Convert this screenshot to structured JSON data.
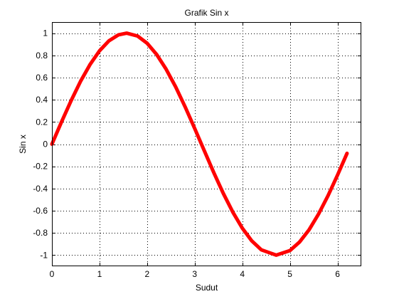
{
  "chart_data": {
    "type": "line",
    "title": "Grafik Sin x",
    "xlabel": "Sudut",
    "ylabel": "Sin x",
    "xlim": [
      0,
      6.5
    ],
    "ylim": [
      -1.1,
      1.1
    ],
    "xticks": [
      0,
      1,
      2,
      3,
      4,
      5,
      6
    ],
    "yticks": [
      -1,
      -0.8,
      -0.6,
      -0.4,
      -0.2,
      0,
      0.2,
      0.4,
      0.6,
      0.8,
      1
    ],
    "grid": true,
    "series": [
      {
        "color": "#ff0000",
        "x": [
          0,
          0.2,
          0.4,
          0.6,
          0.8,
          1.0,
          1.2,
          1.4,
          1.5708,
          1.8,
          2.0,
          2.2,
          2.4,
          2.6,
          2.8,
          3.0,
          3.1416,
          3.4,
          3.6,
          3.8,
          4.0,
          4.2,
          4.4,
          4.7124,
          5.0,
          5.2,
          5.4,
          5.6,
          5.8,
          6.0,
          6.2
        ],
        "y": [
          0,
          0.199,
          0.389,
          0.565,
          0.717,
          0.841,
          0.932,
          0.985,
          1.0,
          0.974,
          0.909,
          0.808,
          0.675,
          0.516,
          0.335,
          0.141,
          0.0,
          -0.256,
          -0.443,
          -0.612,
          -0.757,
          -0.872,
          -0.952,
          -1.0,
          -0.959,
          -0.883,
          -0.773,
          -0.631,
          -0.465,
          -0.279,
          -0.083
        ]
      }
    ]
  }
}
